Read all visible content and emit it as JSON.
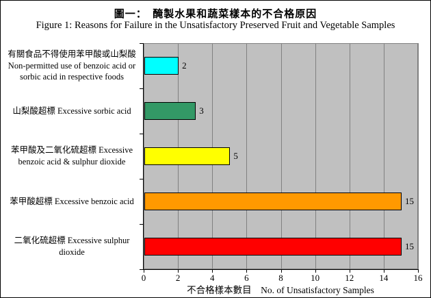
{
  "chart_data": {
    "type": "bar",
    "orientation": "horizontal",
    "title": "圖一：　醃製水果和蔬菜樣本的不合格原因",
    "subtitle": "Figure 1: Reasons for Failure in the Unsatisfactory Preserved Fruit and Vegetable Samples",
    "categories": [
      "有關食品不得使用苯甲酸或山梨酸 Non-permitted use of benzoic acid or sorbic acid in respective foods",
      "山梨酸超標  Excessive sorbic acid",
      "苯甲酸及二氧化硫超標  Excessive benzoic acid & sulphur dioxide",
      "苯甲酸超標  Excessive benzoic acid",
      "二氧化硫超標  Excessive sulphur dioxide"
    ],
    "values": [
      2,
      3,
      5,
      15,
      15
    ],
    "data_labels": [
      "2",
      "3",
      "5",
      "15",
      "15"
    ],
    "bar_colors": [
      "#00FFFF",
      "#339966",
      "#FFFF00",
      "#FF9900",
      "#FF0000"
    ],
    "xlabel": "不合格樣本數目　No. of Unsatisfactory Samples",
    "xlim": [
      0,
      16
    ],
    "xticks": [
      0,
      2,
      4,
      6,
      8,
      10,
      12,
      14,
      16
    ],
    "grid": "vertical-major",
    "legend": "none",
    "plot_background": "#C0C0C0",
    "gridline_color": "#808080",
    "axis_color": "#000000"
  }
}
